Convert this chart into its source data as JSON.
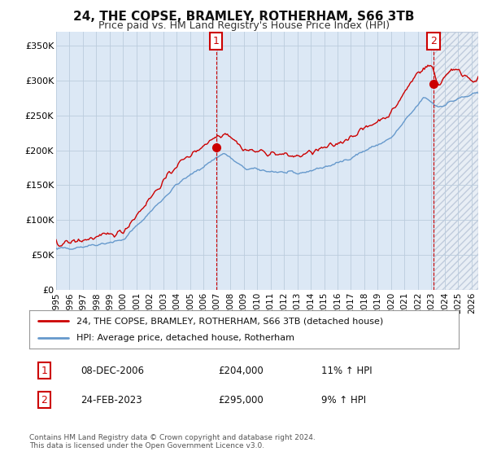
{
  "title": "24, THE COPSE, BRAMLEY, ROTHERHAM, S66 3TB",
  "subtitle": "Price paid vs. HM Land Registry's House Price Index (HPI)",
  "ylabel_ticks": [
    "£0",
    "£50K",
    "£100K",
    "£150K",
    "£200K",
    "£250K",
    "£300K",
    "£350K"
  ],
  "ytick_values": [
    0,
    50000,
    100000,
    150000,
    200000,
    250000,
    300000,
    350000
  ],
  "ylim": [
    0,
    370000
  ],
  "xlim_start": 1995.0,
  "xlim_end": 2026.5,
  "red_color": "#cc0000",
  "blue_color": "#6699cc",
  "grid_color": "#bbccdd",
  "bg_color": "#dce8f5",
  "bg_color_right": "#e8e8e8",
  "highlight_color": "#c8ddf0",
  "sale1_x": 2006.93,
  "sale1_y": 204000,
  "sale2_x": 2023.15,
  "sale2_y": 295000,
  "legend_line1": "24, THE COPSE, BRAMLEY, ROTHERHAM, S66 3TB (detached house)",
  "legend_line2": "HPI: Average price, detached house, Rotherham",
  "annotation1_label": "1",
  "annotation1_date": "08-DEC-2006",
  "annotation1_price": "£204,000",
  "annotation1_hpi": "11% ↑ HPI",
  "annotation2_label": "2",
  "annotation2_date": "24-FEB-2023",
  "annotation2_price": "£295,000",
  "annotation2_hpi": "9% ↑ HPI",
  "footnote1": "Contains HM Land Registry data © Crown copyright and database right 2024.",
  "footnote2": "This data is licensed under the Open Government Licence v3.0.",
  "xtick_years": [
    1995,
    1996,
    1997,
    1998,
    1999,
    2000,
    2001,
    2002,
    2003,
    2004,
    2005,
    2006,
    2007,
    2008,
    2009,
    2010,
    2011,
    2012,
    2013,
    2014,
    2015,
    2016,
    2017,
    2018,
    2019,
    2020,
    2021,
    2022,
    2023,
    2024,
    2025,
    2026
  ]
}
